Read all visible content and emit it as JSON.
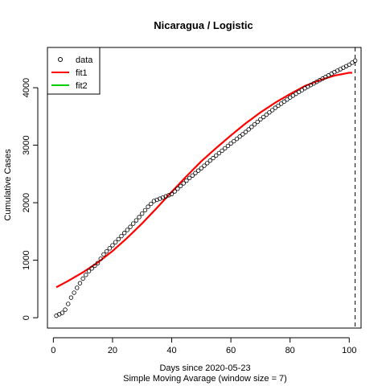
{
  "chart_data": {
    "type": "scatter",
    "title": "Nicaragua / Logistic",
    "xlabel": "Days since 2020-05-23",
    "sublabel": "Simple Moving Avarage (window size = 7)",
    "ylabel": "Cumulative Cases",
    "xlim": [
      -2,
      104
    ],
    "ylim": [
      -180,
      4700
    ],
    "x_ticks": [
      0,
      20,
      40,
      60,
      80,
      100
    ],
    "y_ticks": [
      0,
      1000,
      2000,
      3000,
      4000
    ],
    "vline_x": 102,
    "grid": false,
    "legend": {
      "position": "top-left",
      "entries": [
        {
          "label": "data",
          "symbol": "circle-open",
          "color": "#000000"
        },
        {
          "label": "fit1",
          "symbol": "line",
          "color": "#ff0000"
        },
        {
          "label": "fit2",
          "symbol": "line",
          "color": "#00cd00"
        }
      ]
    },
    "series": [
      {
        "name": "data",
        "style": "points",
        "color": "#000000",
        "anchors": [
          [
            1,
            35
          ],
          [
            3,
            85
          ],
          [
            4,
            140
          ],
          [
            5,
            240
          ],
          [
            6,
            350
          ],
          [
            8,
            520
          ],
          [
            10,
            680
          ],
          [
            12,
            810
          ],
          [
            15,
            950
          ],
          [
            17,
            1100
          ],
          [
            20,
            1260
          ],
          [
            23,
            1420
          ],
          [
            26,
            1580
          ],
          [
            29,
            1750
          ],
          [
            32,
            1930
          ],
          [
            34,
            2030
          ],
          [
            36,
            2070
          ],
          [
            38,
            2110
          ],
          [
            40,
            2150
          ],
          [
            43,
            2290
          ],
          [
            46,
            2430
          ],
          [
            50,
            2600
          ],
          [
            55,
            2820
          ],
          [
            60,
            3030
          ],
          [
            65,
            3230
          ],
          [
            70,
            3450
          ],
          [
            75,
            3650
          ],
          [
            80,
            3830
          ],
          [
            85,
            3990
          ],
          [
            90,
            4130
          ],
          [
            95,
            4270
          ],
          [
            100,
            4400
          ],
          [
            102,
            4470
          ]
        ]
      },
      {
        "name": "fit1",
        "style": "line",
        "color": "#ff0000",
        "anchors": [
          [
            1,
            530
          ],
          [
            5,
            640
          ],
          [
            10,
            790
          ],
          [
            15,
            960
          ],
          [
            20,
            1160
          ],
          [
            25,
            1390
          ],
          [
            30,
            1640
          ],
          [
            35,
            1910
          ],
          [
            40,
            2190
          ],
          [
            45,
            2460
          ],
          [
            50,
            2720
          ],
          [
            55,
            2950
          ],
          [
            60,
            3170
          ],
          [
            65,
            3380
          ],
          [
            70,
            3570
          ],
          [
            75,
            3740
          ],
          [
            80,
            3890
          ],
          [
            85,
            4030
          ],
          [
            90,
            4130
          ],
          [
            95,
            4210
          ],
          [
            100,
            4260
          ],
          [
            101,
            4260
          ]
        ]
      },
      {
        "name": "fit2",
        "style": "line",
        "color": "#00cd00",
        "anchors": []
      }
    ]
  }
}
